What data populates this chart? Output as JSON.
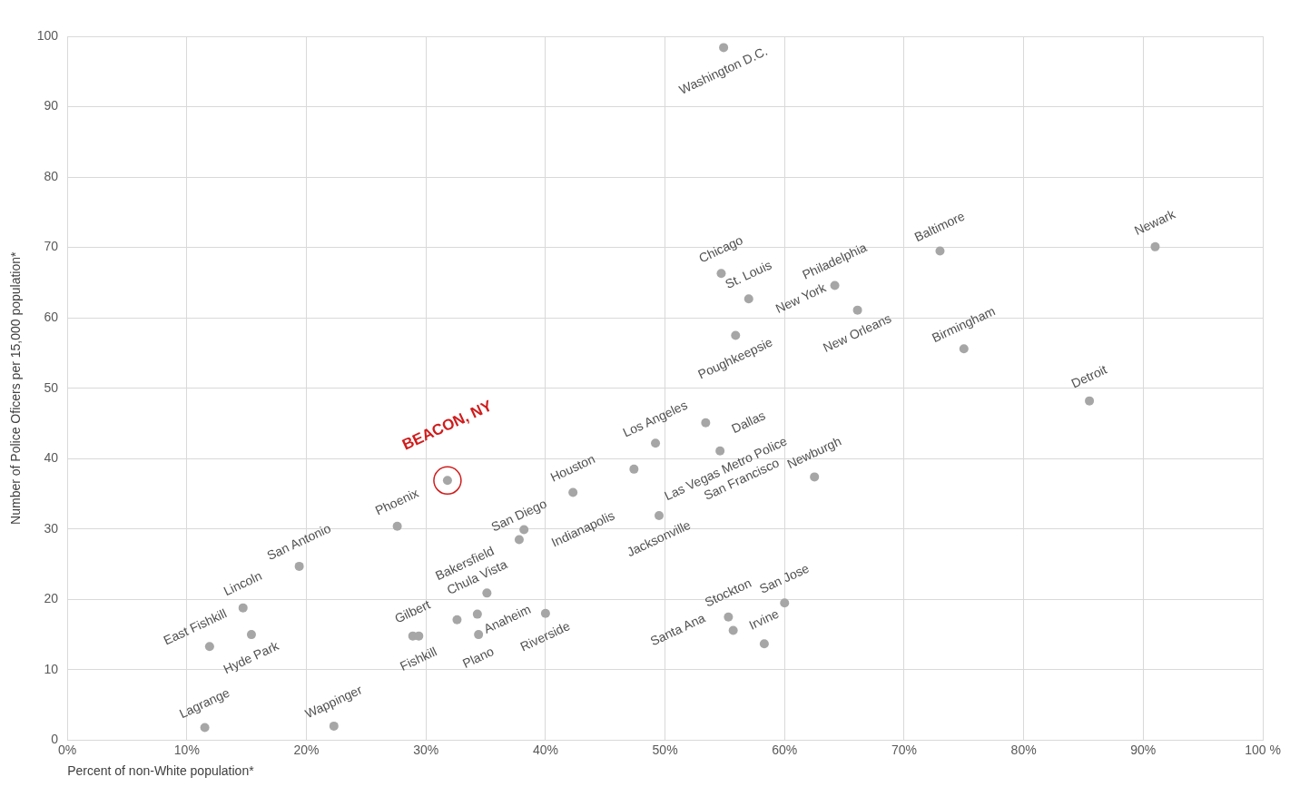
{
  "chart_data": {
    "type": "scatter",
    "xlabel": "Percent of non-White population*",
    "ylabel": "Number of Police Oficers per 15,000 population*",
    "xlim": [
      0,
      100
    ],
    "ylim": [
      0,
      100
    ],
    "xticks": [
      {
        "value": 0,
        "label": "0%"
      },
      {
        "value": 10,
        "label": "10%"
      },
      {
        "value": 20,
        "label": "20%"
      },
      {
        "value": 30,
        "label": "30%"
      },
      {
        "value": 40,
        "label": "40%"
      },
      {
        "value": 50,
        "label": "50%"
      },
      {
        "value": 60,
        "label": "60%"
      },
      {
        "value": 70,
        "label": "70%"
      },
      {
        "value": 80,
        "label": "80%"
      },
      {
        "value": 90,
        "label": "90%"
      },
      {
        "value": 100,
        "label": "100 %"
      }
    ],
    "yticks": [
      0,
      10,
      20,
      30,
      40,
      50,
      60,
      70,
      80,
      90,
      100
    ],
    "grid": true,
    "legend": false,
    "marker": "circle",
    "series": [
      {
        "color": "#a6a6a6",
        "x": [
          11.5,
          22.3,
          11.9,
          15.4,
          14.7,
          19.4,
          27.6,
          28.9,
          29.4,
          32.6,
          34.3,
          34.4,
          35.1,
          40.0,
          37.8,
          38.2,
          42.3,
          47.4,
          49.2,
          49.5,
          53.4,
          54.6,
          55.9,
          62.5,
          85.5,
          75.0,
          55.3,
          55.7,
          58.3,
          60.0,
          54.7,
          57.0,
          64.2,
          66.1,
          73.0,
          91.0,
          54.9
        ],
        "values": [
          1.8,
          2.0,
          13.3,
          15.0,
          18.8,
          24.7,
          30.4,
          14.8,
          14.8,
          17.1,
          17.9,
          15.0,
          20.9,
          18.0,
          28.5,
          29.9,
          35.2,
          38.5,
          42.2,
          31.9,
          45.1,
          41.1,
          57.5,
          37.4,
          48.2,
          55.6,
          17.5,
          15.6,
          13.7,
          19.5,
          66.3,
          62.7,
          64.6,
          61.1,
          69.5,
          70.1,
          98.4
        ]
      },
      {
        "color": "#d01c1c",
        "x": [
          31.8
        ],
        "values": [
          36.9
        ]
      }
    ],
    "annotations": [
      {
        "text": "Lagrange",
        "x": 11.5,
        "y": 1.8
      },
      {
        "text": "Wappinger",
        "x": 22.3,
        "y": 2.0
      },
      {
        "text": "East Fishkill",
        "x": 11.9,
        "y": 13.3
      },
      {
        "text": "Hyde Park",
        "x": 15.4,
        "y": 15.0
      },
      {
        "text": "Lincoln",
        "x": 14.7,
        "y": 18.8
      },
      {
        "text": "San Antonio",
        "x": 19.4,
        "y": 24.7
      },
      {
        "text": "Phoenix",
        "x": 27.6,
        "y": 30.4
      },
      {
        "text": "BEACON, NY",
        "x": 31.8,
        "y": 36.9
      },
      {
        "text": "Gilbert",
        "x": 28.9,
        "y": 14.8
      },
      {
        "text": "Fishkill",
        "x": 29.4,
        "y": 14.8
      },
      {
        "text": "Anaheim",
        "x": 32.6,
        "y": 17.1
      },
      {
        "text": "Chula Vista",
        "x": 34.3,
        "y": 17.9
      },
      {
        "text": "Plano",
        "x": 34.4,
        "y": 15.0
      },
      {
        "text": "Bakersfield",
        "x": 35.1,
        "y": 20.9
      },
      {
        "text": "Riverside",
        "x": 40.0,
        "y": 18.0
      },
      {
        "text": "San Diego",
        "x": 37.8,
        "y": 28.5
      },
      {
        "text": "Indianapolis",
        "x": 38.2,
        "y": 29.9
      },
      {
        "text": "Houston",
        "x": 42.3,
        "y": 35.2
      },
      {
        "text": "Las Vegas Metro Police",
        "x": 47.4,
        "y": 38.5
      },
      {
        "text": "Los Angeles",
        "x": 49.2,
        "y": 42.2
      },
      {
        "text": "Jacksonville",
        "x": 49.5,
        "y": 31.9
      },
      {
        "text": "Dallas",
        "x": 53.4,
        "y": 45.1
      },
      {
        "text": "San Francisco",
        "x": 54.6,
        "y": 41.1
      },
      {
        "text": "Poughkeepsie",
        "x": 55.9,
        "y": 57.5
      },
      {
        "text": "Newburgh",
        "x": 62.5,
        "y": 37.4
      },
      {
        "text": "Detroit",
        "x": 85.5,
        "y": 48.2
      },
      {
        "text": "Birmingham",
        "x": 75.0,
        "y": 55.6
      },
      {
        "text": "Stockton",
        "x": 55.3,
        "y": 17.5
      },
      {
        "text": "Santa Ana",
        "x": 55.7,
        "y": 15.6
      },
      {
        "text": "Irvine",
        "x": 58.3,
        "y": 13.7
      },
      {
        "text": "San Jose",
        "x": 60.0,
        "y": 19.5
      },
      {
        "text": "Chicago",
        "x": 54.7,
        "y": 66.3
      },
      {
        "text": "St. Louis",
        "x": 57.0,
        "y": 62.7
      },
      {
        "text": "New York",
        "x": 57.0,
        "y": 62.7
      },
      {
        "text": "Philadelphia",
        "x": 64.2,
        "y": 64.6
      },
      {
        "text": "New Orleans",
        "x": 66.1,
        "y": 61.1
      },
      {
        "text": "Baltimore",
        "x": 73.0,
        "y": 69.5
      },
      {
        "text": "Newark",
        "x": 91.0,
        "y": 70.1
      },
      {
        "text": "Washington D.C.",
        "x": 54.9,
        "y": 98.4
      }
    ]
  }
}
